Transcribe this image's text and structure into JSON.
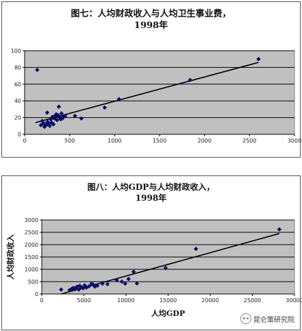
{
  "chart_data": [
    {
      "type": "scatter",
      "title_lines": [
        "图七：人均财政收入与人均卫生事业费，",
        "1998年"
      ],
      "xlabel": "",
      "ylabel": "",
      "xlim": [
        0,
        3000
      ],
      "ylim": [
        0,
        100
      ],
      "xticks": [
        0,
        500,
        1000,
        1500,
        2000,
        2500,
        3000
      ],
      "yticks": [
        0,
        20,
        40,
        60,
        80,
        100
      ],
      "grid": true,
      "marker_color": "#0a0a66",
      "plot_background": "#c0c0c0",
      "points": [
        [
          140,
          77
        ],
        [
          180,
          11
        ],
        [
          195,
          16
        ],
        [
          210,
          13
        ],
        [
          220,
          9
        ],
        [
          230,
          12
        ],
        [
          240,
          11
        ],
        [
          250,
          26
        ],
        [
          255,
          15
        ],
        [
          270,
          13
        ],
        [
          280,
          10
        ],
        [
          290,
          18
        ],
        [
          300,
          14
        ],
        [
          310,
          21
        ],
        [
          320,
          12
        ],
        [
          330,
          19
        ],
        [
          340,
          22
        ],
        [
          350,
          24
        ],
        [
          360,
          17
        ],
        [
          370,
          23
        ],
        [
          380,
          33
        ],
        [
          390,
          20
        ],
        [
          400,
          18
        ],
        [
          410,
          25
        ],
        [
          420,
          19
        ],
        [
          430,
          21
        ],
        [
          450,
          22
        ],
        [
          560,
          22
        ],
        [
          630,
          19
        ],
        [
          890,
          32
        ],
        [
          1050,
          42
        ],
        [
          1840,
          65
        ],
        [
          2600,
          90
        ]
      ],
      "trendline": [
        [
          120,
          14
        ],
        [
          2600,
          86
        ]
      ]
    },
    {
      "type": "scatter",
      "title_lines": [
        "图八：人均GDP与人均财政收入，",
        "1998年"
      ],
      "xlabel": "人均GDP",
      "ylabel": "人均财政收入",
      "xlim": [
        0,
        30000
      ],
      "ylim": [
        0,
        3000
      ],
      "xticks": [
        0,
        5000,
        10000,
        15000,
        20000,
        25000,
        30000
      ],
      "yticks": [
        0,
        500,
        1000,
        1500,
        2000,
        2500,
        3000
      ],
      "grid": true,
      "marker_color": "#0a0a66",
      "plot_background": "#c0c0c0",
      "points": [
        [
          2300,
          180
        ],
        [
          3300,
          160
        ],
        [
          3600,
          220
        ],
        [
          3800,
          250
        ],
        [
          4000,
          200
        ],
        [
          4200,
          300
        ],
        [
          4400,
          180
        ],
        [
          4500,
          330
        ],
        [
          4700,
          280
        ],
        [
          4900,
          230
        ],
        [
          5100,
          350
        ],
        [
          5300,
          260
        ],
        [
          5600,
          310
        ],
        [
          5900,
          410
        ],
        [
          6100,
          380
        ],
        [
          6300,
          300
        ],
        [
          6600,
          340
        ],
        [
          7200,
          420
        ],
        [
          7800,
          400
        ],
        [
          8900,
          560
        ],
        [
          9500,
          500
        ],
        [
          9900,
          420
        ],
        [
          10300,
          610
        ],
        [
          10900,
          900
        ],
        [
          11300,
          430
        ],
        [
          14700,
          1060
        ],
        [
          18300,
          1830
        ],
        [
          28200,
          2620
        ]
      ],
      "trendline": [
        [
          2300,
          0
        ],
        [
          28200,
          2450
        ]
      ]
    }
  ],
  "watermark": {
    "text": "昆仑策研究院",
    "icon": "wechat-icon"
  }
}
